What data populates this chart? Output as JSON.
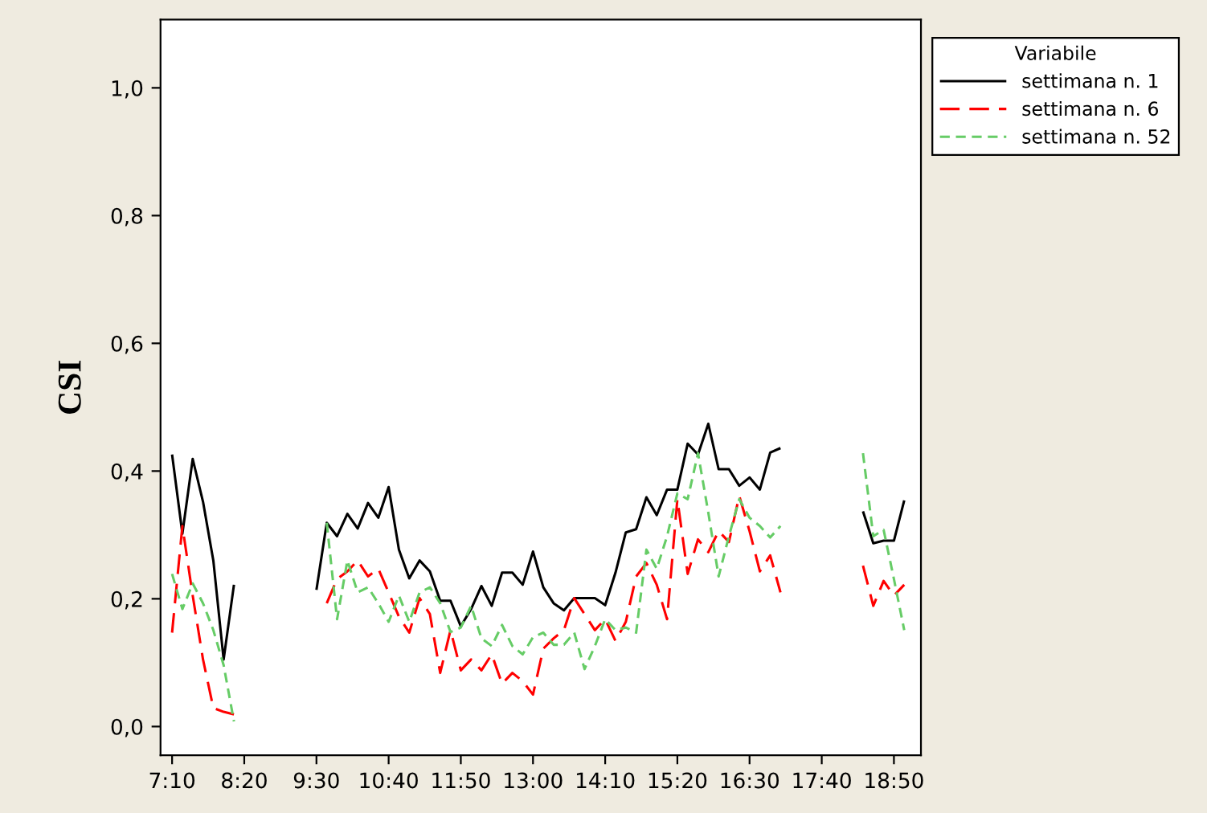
{
  "chart_data": {
    "type": "line",
    "ylabel": "CSI",
    "legend_title": "Variabile",
    "legend": "top right",
    "grid": false,
    "marker": "none",
    "x": [
      7.1667,
      7.3333,
      7.5,
      7.6667,
      7.8333,
      8,
      8.1667,
      8.3333,
      8.5,
      8.6667,
      8.8333,
      9,
      9.1667,
      9.3333,
      9.5,
      9.6667,
      9.8333,
      10,
      10.1667,
      10.3333,
      10.5,
      10.6667,
      10.8333,
      11,
      11.1667,
      11.3333,
      11.5,
      11.6667,
      11.8333,
      12,
      12.1667,
      12.3333,
      12.5,
      12.6667,
      12.8333,
      13,
      13.1667,
      13.3333,
      13.5,
      13.6667,
      13.8333,
      14,
      14.1667,
      14.3333,
      14.5,
      14.6667,
      14.8333,
      15,
      15.1667,
      15.3333,
      15.5,
      15.6667,
      15.8333,
      16,
      16.1667,
      16.3333,
      16.5,
      16.6667,
      16.8333,
      17,
      17.1667,
      17.3333,
      17.5,
      17.6667,
      17.8333,
      18,
      18.1667,
      18.3333,
      18.5,
      18.6667,
      18.8333,
      19
    ],
    "xlim": [
      6.98,
      19.27
    ],
    "xticks": [
      {
        "value": 7.1667,
        "label": "7:10"
      },
      {
        "value": 8.3333,
        "label": "8:20"
      },
      {
        "value": 9.5,
        "label": "9:30"
      },
      {
        "value": 10.6667,
        "label": "10:40"
      },
      {
        "value": 11.8333,
        "label": "11:50"
      },
      {
        "value": 13,
        "label": "13:00"
      },
      {
        "value": 14.1667,
        "label": "14:10"
      },
      {
        "value": 15.3333,
        "label": "15:20"
      },
      {
        "value": 16.5,
        "label": "16:30"
      },
      {
        "value": 17.6667,
        "label": "17:40"
      },
      {
        "value": 18.8333,
        "label": "18:50"
      }
    ],
    "ylim": [
      -0.045,
      1.107
    ],
    "yticks": [
      {
        "value": 0,
        "label": "0,0"
      },
      {
        "value": 0.2,
        "label": "0,2"
      },
      {
        "value": 0.4,
        "label": "0,4"
      },
      {
        "value": 0.6,
        "label": "0,6"
      },
      {
        "value": 0.8,
        "label": "0,8"
      },
      {
        "value": 1.0,
        "label": "1,0"
      }
    ],
    "series": [
      {
        "name": "settimana n. 1",
        "color": "#000000",
        "line_style": "solid",
        "values": [
          0.426,
          0.302,
          0.419,
          0.352,
          0.26,
          0.105,
          0.222,
          null,
          null,
          null,
          null,
          null,
          null,
          null,
          0.214,
          0.319,
          0.298,
          0.333,
          0.31,
          0.35,
          0.327,
          0.375,
          0.277,
          0.232,
          0.26,
          0.243,
          0.197,
          0.197,
          0.157,
          0.184,
          0.22,
          0.189,
          0.241,
          0.241,
          0.222,
          0.274,
          0.218,
          0.193,
          0.182,
          0.201,
          0.201,
          0.201,
          0.19,
          0.241,
          0.304,
          0.309,
          0.359,
          0.331,
          0.371,
          0.371,
          0.443,
          0.426,
          0.474,
          0.403,
          0.403,
          0.377,
          0.39,
          0.371,
          0.429,
          0.436,
          null,
          null,
          null,
          null,
          null,
          null,
          null,
          0.337,
          0.287,
          0.291,
          0.291,
          0.354
        ]
      },
      {
        "name": "settimana n. 6",
        "color": "#ff0000",
        "line_style": "dashed",
        "values": [
          0.147,
          0.314,
          0.205,
          0.105,
          0.029,
          0.023,
          0.019,
          null,
          null,
          null,
          null,
          null,
          null,
          null,
          null,
          0.193,
          0.231,
          0.243,
          0.26,
          0.235,
          0.247,
          0.21,
          0.172,
          0.147,
          0.201,
          0.176,
          0.084,
          0.151,
          0.088,
          0.105,
          0.088,
          0.113,
          0.067,
          0.084,
          0.071,
          0.05,
          0.122,
          0.138,
          0.151,
          0.201,
          0.176,
          0.151,
          0.168,
          0.134,
          0.164,
          0.235,
          0.256,
          0.222,
          0.168,
          0.356,
          0.239,
          0.293,
          0.273,
          0.306,
          0.289,
          0.361,
          0.306,
          0.243,
          0.268,
          0.21,
          null,
          null,
          null,
          null,
          null,
          null,
          null,
          0.252,
          0.189,
          0.228,
          0.205,
          0.222
        ]
      },
      {
        "name": "settimana n. 52",
        "color": "#66cc66",
        "line_style": "dotted",
        "values": [
          0.239,
          0.184,
          0.224,
          0.193,
          0.151,
          0.096,
          0.008,
          null,
          null,
          null,
          null,
          null,
          null,
          null,
          null,
          0.319,
          0.168,
          0.26,
          0.21,
          0.218,
          0.193,
          0.164,
          0.205,
          0.164,
          0.21,
          0.218,
          0.193,
          0.148,
          0.155,
          0.189,
          0.138,
          0.126,
          0.159,
          0.126,
          0.113,
          0.14,
          0.147,
          0.128,
          0.128,
          0.147,
          0.09,
          0.126,
          0.168,
          0.151,
          0.155,
          0.147,
          0.277,
          0.247,
          0.298,
          0.365,
          0.356,
          0.428,
          0.335,
          0.235,
          0.298,
          0.356,
          0.327,
          0.314,
          0.296,
          0.314,
          null,
          null,
          null,
          null,
          null,
          null,
          null,
          0.428,
          0.298,
          0.308,
          0.231,
          0.151
        ]
      }
    ]
  }
}
